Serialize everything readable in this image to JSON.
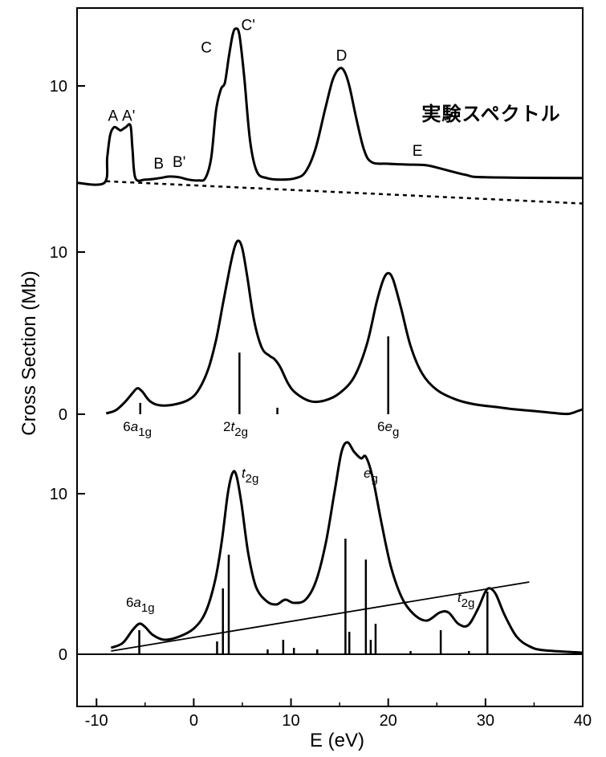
{
  "chart_data": {
    "type": "line",
    "xlabel": "E (eV)",
    "ylabel": "Cross Section (Mb)",
    "xlim": [
      -12,
      40
    ],
    "x_ticks": [
      "-10",
      "0",
      "10",
      "20",
      "30",
      "40"
    ],
    "panels": [
      {
        "name": "experimental",
        "title": "実験スペクトル",
        "y_ticks": [
          "10"
        ],
        "series_points": [
          [
            -12,
            3.9
          ],
          [
            -9.2,
            3.9
          ],
          [
            -8.9,
            5.5
          ],
          [
            -8.6,
            6.9
          ],
          [
            -8.2,
            7.4
          ],
          [
            -7.8,
            7.3
          ],
          [
            -7.5,
            7.2
          ],
          [
            -7,
            7.4
          ],
          [
            -6.5,
            7.5
          ],
          [
            -6.3,
            6
          ],
          [
            -6,
            4.2
          ],
          [
            -5,
            4.1
          ],
          [
            -3.5,
            4.2
          ],
          [
            -2.5,
            4.3
          ],
          [
            -1.5,
            4.25
          ],
          [
            -0.5,
            4.1
          ],
          [
            0.5,
            4.05
          ],
          [
            1.2,
            4.2
          ],
          [
            1.8,
            5.5
          ],
          [
            2.3,
            8.5
          ],
          [
            2.8,
            9.8
          ],
          [
            3.2,
            10.2
          ],
          [
            3.6,
            11.8
          ],
          [
            4,
            13.2
          ],
          [
            4.3,
            13.6
          ],
          [
            4.7,
            13.2
          ],
          [
            5.2,
            10.5
          ],
          [
            5.8,
            6.5
          ],
          [
            6.5,
            4.6
          ],
          [
            7.5,
            4.2
          ],
          [
            9,
            4.1
          ],
          [
            10.5,
            4.2
          ],
          [
            11.5,
            4.6
          ],
          [
            12.5,
            6
          ],
          [
            13.5,
            8.5
          ],
          [
            14.3,
            10.4
          ],
          [
            15,
            11.1
          ],
          [
            15.5,
            10.9
          ],
          [
            16,
            10
          ],
          [
            16.7,
            8
          ],
          [
            17.5,
            6
          ],
          [
            18.3,
            5.2
          ],
          [
            20,
            5.1
          ],
          [
            22,
            5.05
          ],
          [
            24,
            5
          ],
          [
            26,
            4.7
          ],
          [
            28,
            4.4
          ],
          [
            30,
            4.25
          ],
          [
            40,
            4.2
          ]
        ],
        "baseline_points": [
          [
            -9,
            4.0
          ],
          [
            40,
            2.6
          ]
        ],
        "peak_labels": [
          {
            "x": -8.3,
            "y": 7.8,
            "text": "A"
          },
          {
            "x": -6.7,
            "y": 7.8,
            "text": "A'"
          },
          {
            "x": -3.6,
            "y": 4.8,
            "text": "B"
          },
          {
            "x": -1.5,
            "y": 4.9,
            "text": "B'"
          },
          {
            "x": 1.3,
            "y": 12.1,
            "text": "C"
          },
          {
            "x": 5.6,
            "y": 13.5,
            "text": "C'"
          },
          {
            "x": 15.2,
            "y": 11.6,
            "text": "D"
          },
          {
            "x": 23,
            "y": 5.6,
            "text": "E"
          }
        ]
      },
      {
        "name": "calculation_1",
        "y_ticks": [
          "0",
          "10"
        ],
        "series_points": [
          [
            -9,
            0.05
          ],
          [
            -8,
            0.25
          ],
          [
            -7,
            0.8
          ],
          [
            -6.3,
            1.3
          ],
          [
            -5.8,
            1.6
          ],
          [
            -5.3,
            1.4
          ],
          [
            -4.5,
            0.8
          ],
          [
            -3.5,
            0.55
          ],
          [
            -2,
            0.6
          ],
          [
            -0.5,
            0.9
          ],
          [
            0.5,
            1.5
          ],
          [
            1.5,
            2.8
          ],
          [
            2.3,
            4.6
          ],
          [
            3,
            6.8
          ],
          [
            3.7,
            9
          ],
          [
            4.2,
            10.3
          ],
          [
            4.6,
            10.7
          ],
          [
            5,
            10.2
          ],
          [
            5.5,
            8.5
          ],
          [
            6.2,
            5.8
          ],
          [
            7,
            4.1
          ],
          [
            7.8,
            3.6
          ],
          [
            8.3,
            3.4
          ],
          [
            8.9,
            2.9
          ],
          [
            9.7,
            1.9
          ],
          [
            10.5,
            1.3
          ],
          [
            12,
            0.8
          ],
          [
            13.5,
            0.85
          ],
          [
            15,
            1.3
          ],
          [
            16.5,
            2.3
          ],
          [
            17.8,
            4.3
          ],
          [
            18.8,
            6.9
          ],
          [
            19.5,
            8.3
          ],
          [
            20,
            8.7
          ],
          [
            20.5,
            8.3
          ],
          [
            21.3,
            6.6
          ],
          [
            22.3,
            4.2
          ],
          [
            23.5,
            2.5
          ],
          [
            25,
            1.5
          ],
          [
            27,
            0.9
          ],
          [
            29,
            0.6
          ],
          [
            31,
            0.45
          ],
          [
            33,
            0.3
          ],
          [
            35,
            0.2
          ],
          [
            37,
            0.08
          ],
          [
            38.5,
            0.02
          ],
          [
            39.5,
            0.2
          ],
          [
            40,
            0.3
          ]
        ],
        "sticks": [
          [
            -5.5,
            0.7
          ],
          [
            4.7,
            3.8
          ],
          [
            8.6,
            0.4
          ],
          [
            20,
            4.8
          ]
        ],
        "labels": [
          {
            "x": -5.8,
            "text_main": "6a",
            "text_sub": "1g",
            "italic": "a"
          },
          {
            "x": 4.3,
            "text_main": "2t",
            "text_sub": "2g",
            "italic": "t"
          },
          {
            "x": 20,
            "text_main": "6e",
            "text_sub": "g",
            "italic": "e"
          }
        ]
      },
      {
        "name": "calculation_2",
        "y_ticks": [
          "0",
          "10"
        ],
        "series_points": [
          [
            -8.5,
            0.4
          ],
          [
            -7.3,
            0.7
          ],
          [
            -6.3,
            1.5
          ],
          [
            -5.6,
            1.9
          ],
          [
            -5,
            1.7
          ],
          [
            -4.2,
            1.2
          ],
          [
            -3,
            0.9
          ],
          [
            -1.5,
            1.1
          ],
          [
            0,
            1.6
          ],
          [
            1.2,
            2.6
          ],
          [
            2.2,
            4.6
          ],
          [
            2.9,
            7.1
          ],
          [
            3.5,
            10
          ],
          [
            4,
            11.3
          ],
          [
            4.4,
            11.1
          ],
          [
            4.9,
            9.4
          ],
          [
            5.6,
            6.3
          ],
          [
            6.4,
            4.2
          ],
          [
            7.5,
            3.3
          ],
          [
            8.5,
            3.1
          ],
          [
            9.4,
            3.4
          ],
          [
            10.3,
            3.2
          ],
          [
            11.5,
            3.4
          ],
          [
            12.6,
            4.6
          ],
          [
            13.6,
            7
          ],
          [
            14.5,
            10.2
          ],
          [
            15.2,
            12.6
          ],
          [
            15.8,
            13.2
          ],
          [
            16.5,
            12.6
          ],
          [
            17.2,
            12.2
          ],
          [
            17.7,
            12.3
          ],
          [
            18.4,
            11
          ],
          [
            19.3,
            8.2
          ],
          [
            20.3,
            5.4
          ],
          [
            21.5,
            3.4
          ],
          [
            22.8,
            2.4
          ],
          [
            24,
            2.1
          ],
          [
            25.3,
            2.6
          ],
          [
            26.2,
            2.6
          ],
          [
            27.2,
            1.9
          ],
          [
            28.2,
            1.8
          ],
          [
            29.2,
            2.8
          ],
          [
            30,
            3.9
          ],
          [
            30.5,
            4.1
          ],
          [
            31.1,
            3.7
          ],
          [
            32,
            2.4
          ],
          [
            33.2,
            1.1
          ],
          [
            34.5,
            0.5
          ],
          [
            36,
            0.25
          ],
          [
            40,
            0.1
          ]
        ],
        "sticks": [
          [
            -5.6,
            1.5
          ],
          [
            2.4,
            0.8
          ],
          [
            3,
            4.1
          ],
          [
            3.6,
            6.2
          ],
          [
            9.2,
            0.9
          ],
          [
            10.3,
            0.4
          ],
          [
            15.6,
            7.2
          ],
          [
            16,
            1.4
          ],
          [
            17.7,
            5.9
          ],
          [
            18.2,
            0.9
          ],
          [
            18.7,
            1.9
          ],
          [
            25.4,
            1.5
          ],
          [
            30.2,
            3.9
          ],
          [
            7.6,
            0.3
          ],
          [
            12.7,
            0.3
          ],
          [
            22.3,
            0.2
          ],
          [
            28.3,
            0.2
          ]
        ],
        "background_line": [
          [
            -8.5,
            0.2
          ],
          [
            34.5,
            4.5
          ]
        ],
        "labels": [
          {
            "x": 5.8,
            "text_main": "t",
            "text_sub": "2g",
            "italic": "t"
          },
          {
            "x": 18.2,
            "text_main": "e",
            "text_sub": "g",
            "italic": "e"
          },
          {
            "x": -5.5,
            "text_main": "6a",
            "text_sub": "1g",
            "italic": "a"
          },
          {
            "x": 28,
            "text_main": "t",
            "text_sub": "2g",
            "italic": "t"
          }
        ]
      }
    ]
  }
}
